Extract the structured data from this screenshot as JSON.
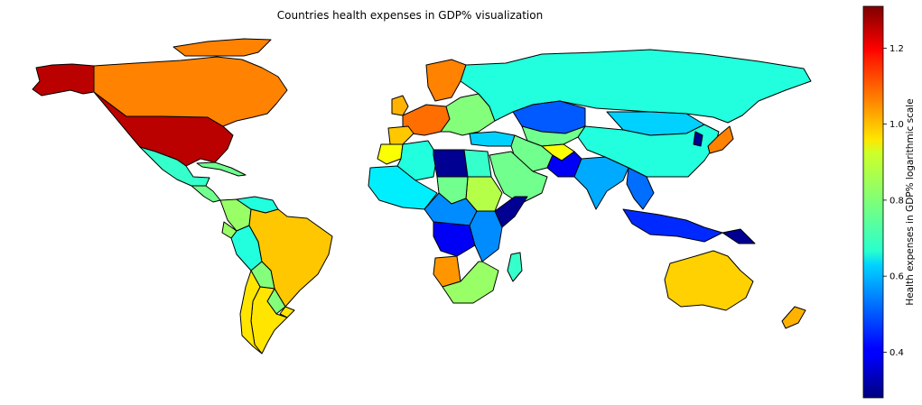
{
  "title": "Countries health expenses in GDP% visualization",
  "colorbar": {
    "label": "Health expenses in GDP% logarithmic scale",
    "colormap": "jet",
    "min": 0.28,
    "max": 1.31,
    "ticks": [
      {
        "value": 0.4,
        "label": "0.4"
      },
      {
        "value": 0.6,
        "label": "0.6"
      },
      {
        "value": 0.8,
        "label": "0.8"
      },
      {
        "value": 1.0,
        "label": "1.0"
      },
      {
        "value": 1.2,
        "label": "1.2"
      }
    ]
  },
  "map": {
    "projection": "plate-carree",
    "background": "#ffffff",
    "border_color": "#000000",
    "regions": [
      {
        "name": "United States",
        "value": 1.25
      },
      {
        "name": "Alaska",
        "value": 1.25
      },
      {
        "name": "Canada",
        "value": 1.05
      },
      {
        "name": "Greenland",
        "value": 1.05
      },
      {
        "name": "Mexico",
        "value": 0.72
      },
      {
        "name": "Central America",
        "value": 0.78
      },
      {
        "name": "Cuba",
        "value": 0.78
      },
      {
        "name": "Colombia",
        "value": 0.82
      },
      {
        "name": "Venezuela",
        "value": 0.7
      },
      {
        "name": "Peru",
        "value": 0.7
      },
      {
        "name": "Ecuador",
        "value": 0.82
      },
      {
        "name": "Brazil",
        "value": 0.98
      },
      {
        "name": "Bolivia",
        "value": 0.8
      },
      {
        "name": "Paraguay",
        "value": 0.8
      },
      {
        "name": "Argentina",
        "value": 0.95
      },
      {
        "name": "Chile",
        "value": 0.95
      },
      {
        "name": "Uruguay",
        "value": 0.95
      },
      {
        "name": "Western Europe",
        "value": 1.07
      },
      {
        "name": "Scandinavia",
        "value": 1.05
      },
      {
        "name": "United Kingdom",
        "value": 1.0
      },
      {
        "name": "Iberia",
        "value": 0.98
      },
      {
        "name": "Eastern Europe",
        "value": 0.8
      },
      {
        "name": "Russia",
        "value": 0.7
      },
      {
        "name": "Kazakhstan",
        "value": 0.5
      },
      {
        "name": "Mongolia",
        "value": 0.62
      },
      {
        "name": "China",
        "value": 0.7
      },
      {
        "name": "Japan",
        "value": 1.05
      },
      {
        "name": "Korea",
        "value": 0.3
      },
      {
        "name": "Central Asia",
        "value": 0.78
      },
      {
        "name": "Turkey",
        "value": 0.62
      },
      {
        "name": "Iran",
        "value": 0.78
      },
      {
        "name": "Afghanistan",
        "value": 0.92
      },
      {
        "name": "Pakistan",
        "value": 0.4
      },
      {
        "name": "India",
        "value": 0.58
      },
      {
        "name": "Arabian Peninsula",
        "value": 0.78
      },
      {
        "name": "Southeast Asia",
        "value": 0.52
      },
      {
        "name": "Indonesia",
        "value": 0.45
      },
      {
        "name": "Papua New Guinea",
        "value": 0.3
      },
      {
        "name": "Australia",
        "value": 0.97
      },
      {
        "name": "New Zealand",
        "value": 1.0
      },
      {
        "name": "Morocco",
        "value": 0.92
      },
      {
        "name": "Algeria",
        "value": 0.7
      },
      {
        "name": "Libya",
        "value": 0.3
      },
      {
        "name": "Egypt",
        "value": 0.72
      },
      {
        "name": "Sudan",
        "value": 0.85
      },
      {
        "name": "Chad",
        "value": 0.78
      },
      {
        "name": "West Africa",
        "value": 0.65
      },
      {
        "name": "Central Africa",
        "value": 0.55
      },
      {
        "name": "Congo",
        "value": 0.4
      },
      {
        "name": "East Africa",
        "value": 0.55
      },
      {
        "name": "Somalia",
        "value": 0.3
      },
      {
        "name": "Angola",
        "value": 1.03
      },
      {
        "name": "Southern Africa",
        "value": 0.82
      },
      {
        "name": "Madagascar",
        "value": 0.72
      }
    ]
  }
}
